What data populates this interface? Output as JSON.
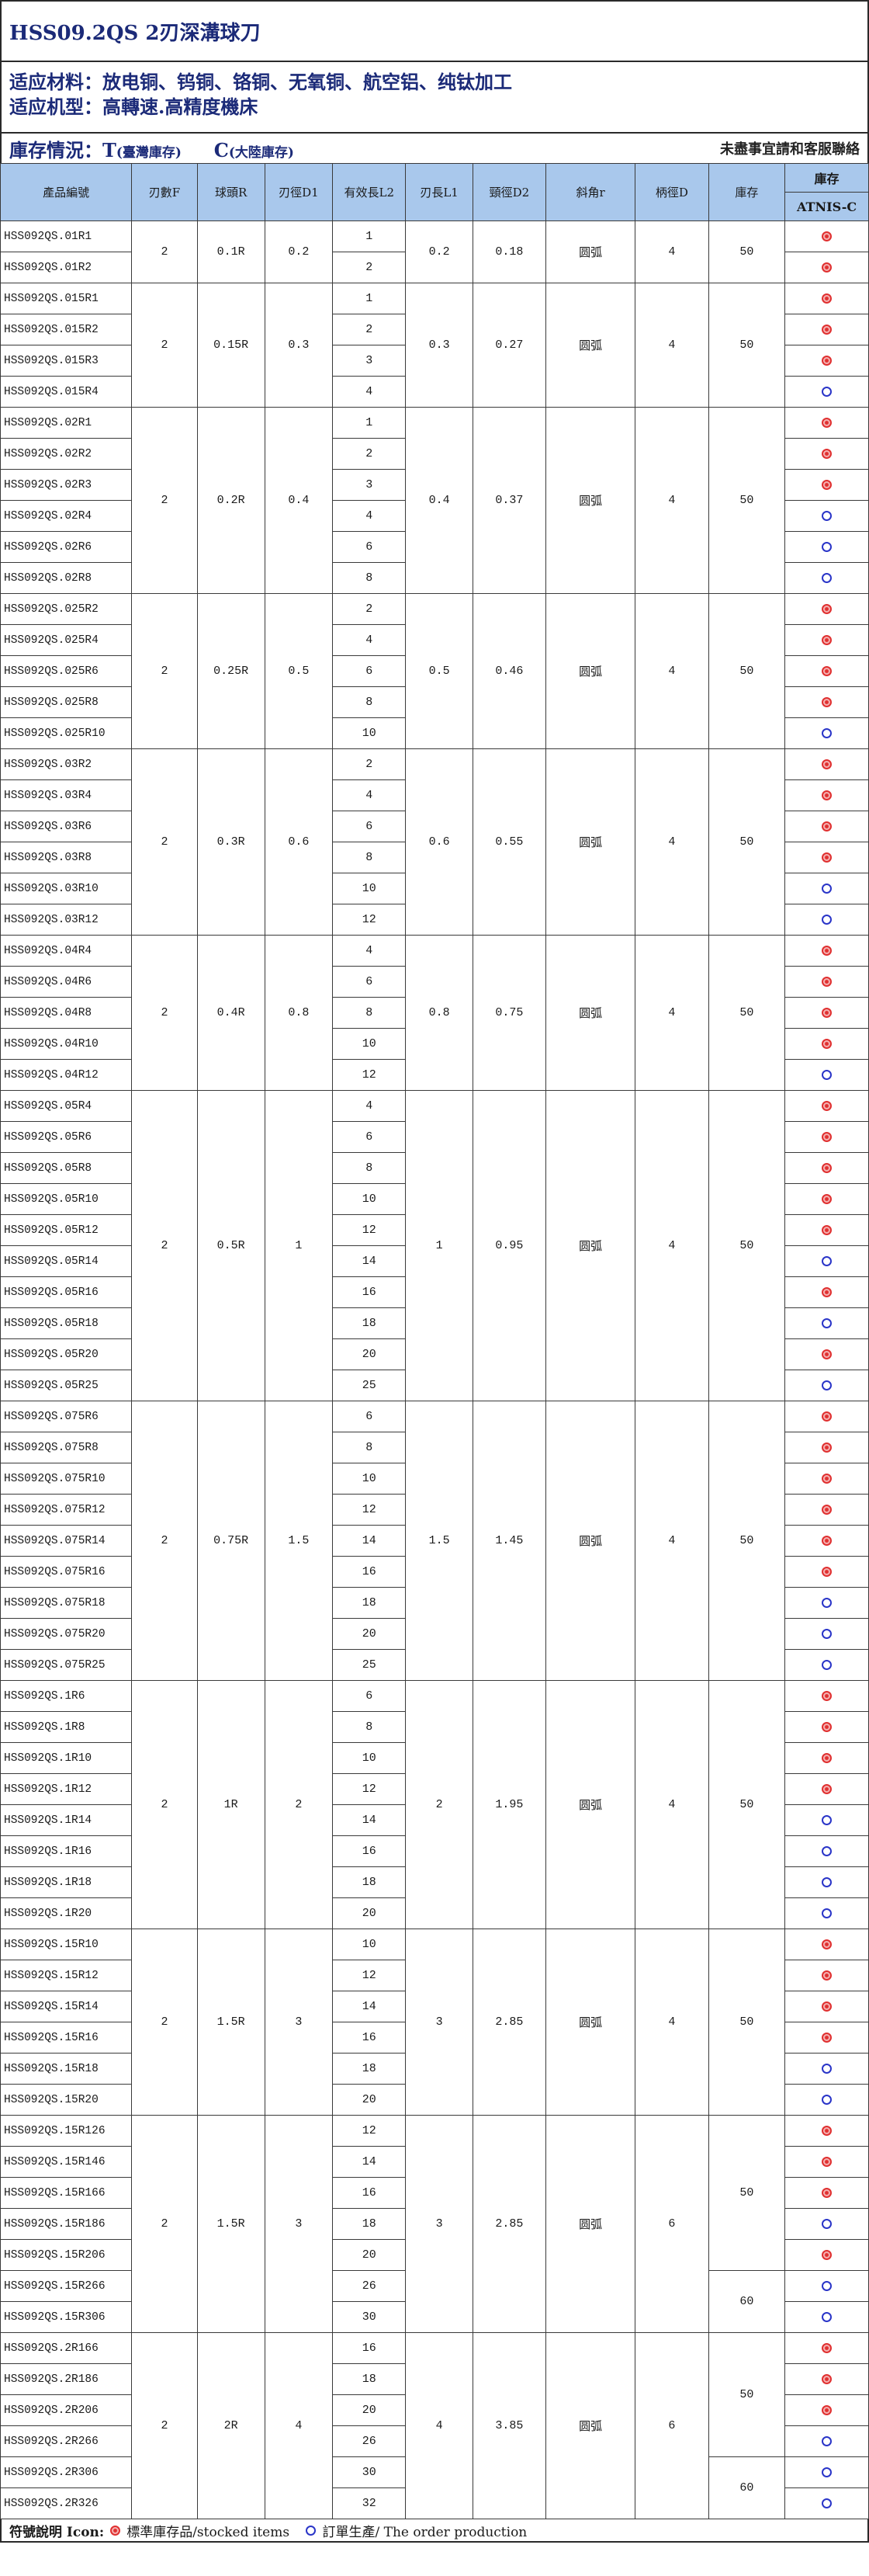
{
  "header": {
    "title": "HSS09.2QS 2刃深溝球刀",
    "material": "适应材料：放电铜、钨铜、铬铜、无氧铜、航空铝、纯钛加工",
    "machine": "适应机型：高轉速.高精度機床",
    "stock_label": "庫存情況：T",
    "stock_t": "(臺灣庫存)",
    "stock_c_label": "C",
    "stock_c": "(大陸庫存)",
    "contact": "未盡事宜請和客服聯絡"
  },
  "columns": [
    "產品編號",
    "刃數F",
    "球頭R",
    "刃徑D1",
    "有效長L2",
    "刃長L1",
    "頸徑D2",
    "斜角r",
    "柄徑D",
    "庫存",
    "庫存",
    "ATNIS-C"
  ],
  "groups": [
    {
      "f": "2",
      "r": "0.1R",
      "d1": "0.2",
      "l1": "0.2",
      "d2": "0.18",
      "angle": "圆弧",
      "d": "4",
      "stock_groups": [
        {
          "n": 2,
          "v": "50"
        }
      ],
      "rows": [
        [
          "HSS092QS.01R1",
          "1",
          "s"
        ],
        [
          "HSS092QS.01R2",
          "2",
          "s"
        ]
      ]
    },
    {
      "f": "2",
      "r": "0.15R",
      "d1": "0.3",
      "l1": "0.3",
      "d2": "0.27",
      "angle": "圆弧",
      "d": "4",
      "stock_groups": [
        {
          "n": 4,
          "v": "50"
        }
      ],
      "rows": [
        [
          "HSS092QS.015R1",
          "1",
          "s"
        ],
        [
          "HSS092QS.015R2",
          "2",
          "s"
        ],
        [
          "HSS092QS.015R3",
          "3",
          "s"
        ],
        [
          "HSS092QS.015R4",
          "4",
          "o"
        ]
      ]
    },
    {
      "f": "2",
      "r": "0.2R",
      "d1": "0.4",
      "l1": "0.4",
      "d2": "0.37",
      "angle": "圆弧",
      "d": "4",
      "stock_groups": [
        {
          "n": 6,
          "v": "50"
        }
      ],
      "rows": [
        [
          "HSS092QS.02R1",
          "1",
          "s"
        ],
        [
          "HSS092QS.02R2",
          "2",
          "s"
        ],
        [
          "HSS092QS.02R3",
          "3",
          "s"
        ],
        [
          "HSS092QS.02R4",
          "4",
          "o"
        ],
        [
          "HSS092QS.02R6",
          "6",
          "o"
        ],
        [
          "HSS092QS.02R8",
          "8",
          "o"
        ]
      ]
    },
    {
      "f": "2",
      "r": "0.25R",
      "d1": "0.5",
      "l1": "0.5",
      "d2": "0.46",
      "angle": "圆弧",
      "d": "4",
      "stock_groups": [
        {
          "n": 5,
          "v": "50"
        }
      ],
      "rows": [
        [
          "HSS092QS.025R2",
          "2",
          "s"
        ],
        [
          "HSS092QS.025R4",
          "4",
          "s"
        ],
        [
          "HSS092QS.025R6",
          "6",
          "s"
        ],
        [
          "HSS092QS.025R8",
          "8",
          "s"
        ],
        [
          "HSS092QS.025R10",
          "10",
          "o"
        ]
      ]
    },
    {
      "f": "2",
      "r": "0.3R",
      "d1": "0.6",
      "l1": "0.6",
      "d2": "0.55",
      "angle": "圆弧",
      "d": "4",
      "stock_groups": [
        {
          "n": 6,
          "v": "50"
        }
      ],
      "rows": [
        [
          "HSS092QS.03R2",
          "2",
          "s"
        ],
        [
          "HSS092QS.03R4",
          "4",
          "s"
        ],
        [
          "HSS092QS.03R6",
          "6",
          "s"
        ],
        [
          "HSS092QS.03R8",
          "8",
          "s"
        ],
        [
          "HSS092QS.03R10",
          "10",
          "o"
        ],
        [
          "HSS092QS.03R12",
          "12",
          "o"
        ]
      ]
    },
    {
      "f": "2",
      "r": "0.4R",
      "d1": "0.8",
      "l1": "0.8",
      "d2": "0.75",
      "angle": "圆弧",
      "d": "4",
      "stock_groups": [
        {
          "n": 5,
          "v": "50"
        }
      ],
      "rows": [
        [
          "HSS092QS.04R4",
          "4",
          "s"
        ],
        [
          "HSS092QS.04R6",
          "6",
          "s"
        ],
        [
          "HSS092QS.04R8",
          "8",
          "s"
        ],
        [
          "HSS092QS.04R10",
          "10",
          "s"
        ],
        [
          "HSS092QS.04R12",
          "12",
          "o"
        ]
      ]
    },
    {
      "f": "2",
      "r": "0.5R",
      "d1": "1",
      "l1": "1",
      "d2": "0.95",
      "angle": "圆弧",
      "d": "4",
      "stock_groups": [
        {
          "n": 10,
          "v": "50"
        }
      ],
      "rows": [
        [
          "HSS092QS.05R4",
          "4",
          "s"
        ],
        [
          "HSS092QS.05R6",
          "6",
          "s"
        ],
        [
          "HSS092QS.05R8",
          "8",
          "s"
        ],
        [
          "HSS092QS.05R10",
          "10",
          "s"
        ],
        [
          "HSS092QS.05R12",
          "12",
          "s"
        ],
        [
          "HSS092QS.05R14",
          "14",
          "o"
        ],
        [
          "HSS092QS.05R16",
          "16",
          "s"
        ],
        [
          "HSS092QS.05R18",
          "18",
          "o"
        ],
        [
          "HSS092QS.05R20",
          "20",
          "s"
        ],
        [
          "HSS092QS.05R25",
          "25",
          "o"
        ]
      ]
    },
    {
      "f": "2",
      "r": "0.75R",
      "d1": "1.5",
      "l1": "1.5",
      "d2": "1.45",
      "angle": "圆弧",
      "d": "4",
      "stock_groups": [
        {
          "n": 9,
          "v": "50"
        }
      ],
      "rows": [
        [
          "HSS092QS.075R6",
          "6",
          "s"
        ],
        [
          "HSS092QS.075R8",
          "8",
          "s"
        ],
        [
          "HSS092QS.075R10",
          "10",
          "s"
        ],
        [
          "HSS092QS.075R12",
          "12",
          "s"
        ],
        [
          "HSS092QS.075R14",
          "14",
          "s"
        ],
        [
          "HSS092QS.075R16",
          "16",
          "s"
        ],
        [
          "HSS092QS.075R18",
          "18",
          "o"
        ],
        [
          "HSS092QS.075R20",
          "20",
          "o"
        ],
        [
          "HSS092QS.075R25",
          "25",
          "o"
        ]
      ]
    },
    {
      "f": "2",
      "r": "1R",
      "d1": "2",
      "l1": "2",
      "d2": "1.95",
      "angle": "圆弧",
      "d": "4",
      "stock_groups": [
        {
          "n": 8,
          "v": "50"
        }
      ],
      "rows": [
        [
          "HSS092QS.1R6",
          "6",
          "s"
        ],
        [
          "HSS092QS.1R8",
          "8",
          "s"
        ],
        [
          "HSS092QS.1R10",
          "10",
          "s"
        ],
        [
          "HSS092QS.1R12",
          "12",
          "s"
        ],
        [
          "HSS092QS.1R14",
          "14",
          "o"
        ],
        [
          "HSS092QS.1R16",
          "16",
          "o"
        ],
        [
          "HSS092QS.1R18",
          "18",
          "o"
        ],
        [
          "HSS092QS.1R20",
          "20",
          "o"
        ]
      ]
    },
    {
      "f": "2",
      "r": "1.5R",
      "d1": "3",
      "l1": "3",
      "d2": "2.85",
      "angle": "圆弧",
      "d": "4",
      "stock_groups": [
        {
          "n": 6,
          "v": "50"
        }
      ],
      "rows": [
        [
          "HSS092QS.15R10",
          "10",
          "s"
        ],
        [
          "HSS092QS.15R12",
          "12",
          "s"
        ],
        [
          "HSS092QS.15R14",
          "14",
          "s"
        ],
        [
          "HSS092QS.15R16",
          "16",
          "s"
        ],
        [
          "HSS092QS.15R18",
          "18",
          "o"
        ],
        [
          "HSS092QS.15R20",
          "20",
          "o"
        ]
      ]
    },
    {
      "f": "2",
      "r": "1.5R",
      "d1": "3",
      "l1": "3",
      "d2": "2.85",
      "angle": "圆弧",
      "d": "6",
      "stock_groups": [
        {
          "n": 5,
          "v": "50"
        },
        {
          "n": 2,
          "v": "60"
        }
      ],
      "rows": [
        [
          "HSS092QS.15R126",
          "12",
          "s"
        ],
        [
          "HSS092QS.15R146",
          "14",
          "s"
        ],
        [
          "HSS092QS.15R166",
          "16",
          "s"
        ],
        [
          "HSS092QS.15R186",
          "18",
          "o"
        ],
        [
          "HSS092QS.15R206",
          "20",
          "s"
        ],
        [
          "HSS092QS.15R266",
          "26",
          "o"
        ],
        [
          "HSS092QS.15R306",
          "30",
          "o"
        ]
      ]
    },
    {
      "f": "2",
      "r": "2R",
      "d1": "4",
      "l1": "4",
      "d2": "3.85",
      "angle": "圆弧",
      "d": "6",
      "stock_groups": [
        {
          "n": 4,
          "v": "50"
        },
        {
          "n": 2,
          "v": "60"
        }
      ],
      "rows": [
        [
          "HSS092QS.2R166",
          "16",
          "s"
        ],
        [
          "HSS092QS.2R186",
          "18",
          "s"
        ],
        [
          "HSS092QS.2R206",
          "20",
          "s"
        ],
        [
          "HSS092QS.2R266",
          "26",
          "o"
        ],
        [
          "HSS092QS.2R306",
          "30",
          "o"
        ],
        [
          "HSS092QS.2R326",
          "32",
          "o"
        ]
      ]
    }
  ],
  "legend": {
    "label": "符號說明 Icon:",
    "stocked": "標準庫存品/stocked items",
    "order": "訂單生產/ The order production"
  }
}
